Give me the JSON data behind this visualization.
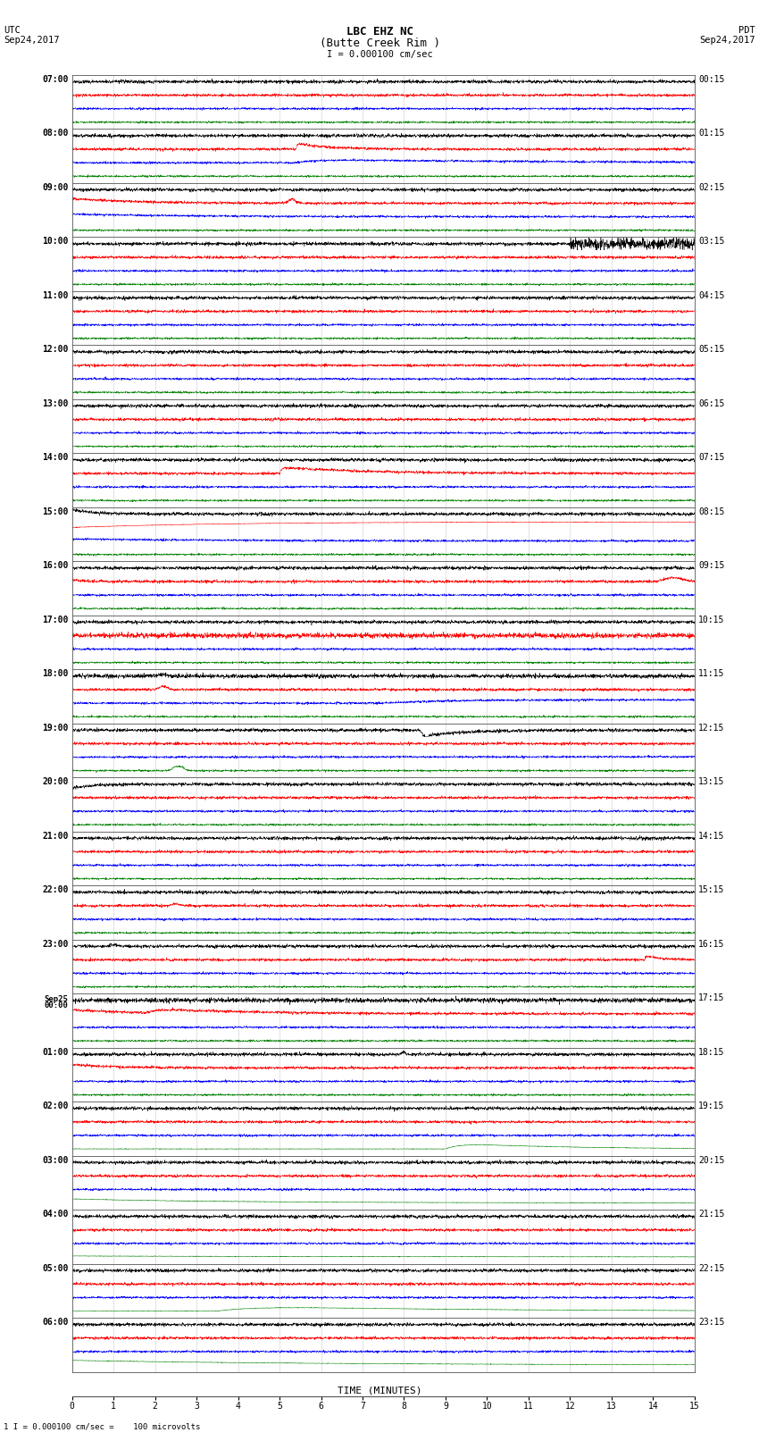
{
  "title_line1": "LBC EHZ NC",
  "title_line2": "(Butte Creek Rim )",
  "scale_label": "I = 0.000100 cm/sec",
  "bottom_label": "1 I = 0.000100 cm/sec =    100 microvolts",
  "utc_label": "UTC",
  "utc_date": "Sep24,2017",
  "pdt_label": "PDT",
  "pdt_date": "Sep24,2017",
  "xlabel": "TIME (MINUTES)",
  "left_times": [
    "07:00",
    "",
    "",
    "",
    "08:00",
    "",
    "",
    "",
    "09:00",
    "",
    "",
    "",
    "10:00",
    "",
    "",
    "",
    "11:00",
    "",
    "",
    "",
    "12:00",
    "",
    "",
    "",
    "13:00",
    "",
    "",
    "",
    "14:00",
    "",
    "",
    "",
    "15:00",
    "",
    "",
    "",
    "16:00",
    "",
    "",
    "",
    "17:00",
    "",
    "",
    "",
    "18:00",
    "",
    "",
    "",
    "19:00",
    "",
    "",
    "",
    "20:00",
    "",
    "",
    "",
    "21:00",
    "",
    "",
    "",
    "22:00",
    "",
    "",
    "",
    "23:00",
    "",
    "",
    "",
    "Sep25\n00:00",
    "",
    "",
    "",
    "01:00",
    "",
    "",
    "",
    "02:00",
    "",
    "",
    "",
    "03:00",
    "",
    "",
    "",
    "04:00",
    "",
    "",
    "",
    "05:00",
    "",
    "",
    "",
    "06:00",
    "",
    "",
    ""
  ],
  "right_times": [
    "00:15",
    "",
    "",
    "",
    "01:15",
    "",
    "",
    "",
    "02:15",
    "",
    "",
    "",
    "03:15",
    "",
    "",
    "",
    "04:15",
    "",
    "",
    "",
    "05:15",
    "",
    "",
    "",
    "06:15",
    "",
    "",
    "",
    "07:15",
    "",
    "",
    "",
    "08:15",
    "",
    "",
    "",
    "09:15",
    "",
    "",
    "",
    "10:15",
    "",
    "",
    "",
    "11:15",
    "",
    "",
    "",
    "12:15",
    "",
    "",
    "",
    "13:15",
    "",
    "",
    "",
    "14:15",
    "",
    "",
    "",
    "15:15",
    "",
    "",
    "",
    "16:15",
    "",
    "",
    "",
    "17:15",
    "",
    "",
    "",
    "18:15",
    "",
    "",
    "",
    "19:15",
    "",
    "",
    "",
    "20:15",
    "",
    "",
    "",
    "21:15",
    "",
    "",
    "",
    "22:15",
    "",
    "",
    "",
    "23:15",
    "",
    "",
    ""
  ],
  "n_hour_rows": 24,
  "n_traces_per_hour": 4,
  "bg_color": "#ffffff",
  "grid_color": "#aaaaaa",
  "trace_colors": [
    "black",
    "red",
    "blue",
    "green"
  ],
  "noise_amps": [
    0.12,
    0.1,
    0.08,
    0.07
  ]
}
